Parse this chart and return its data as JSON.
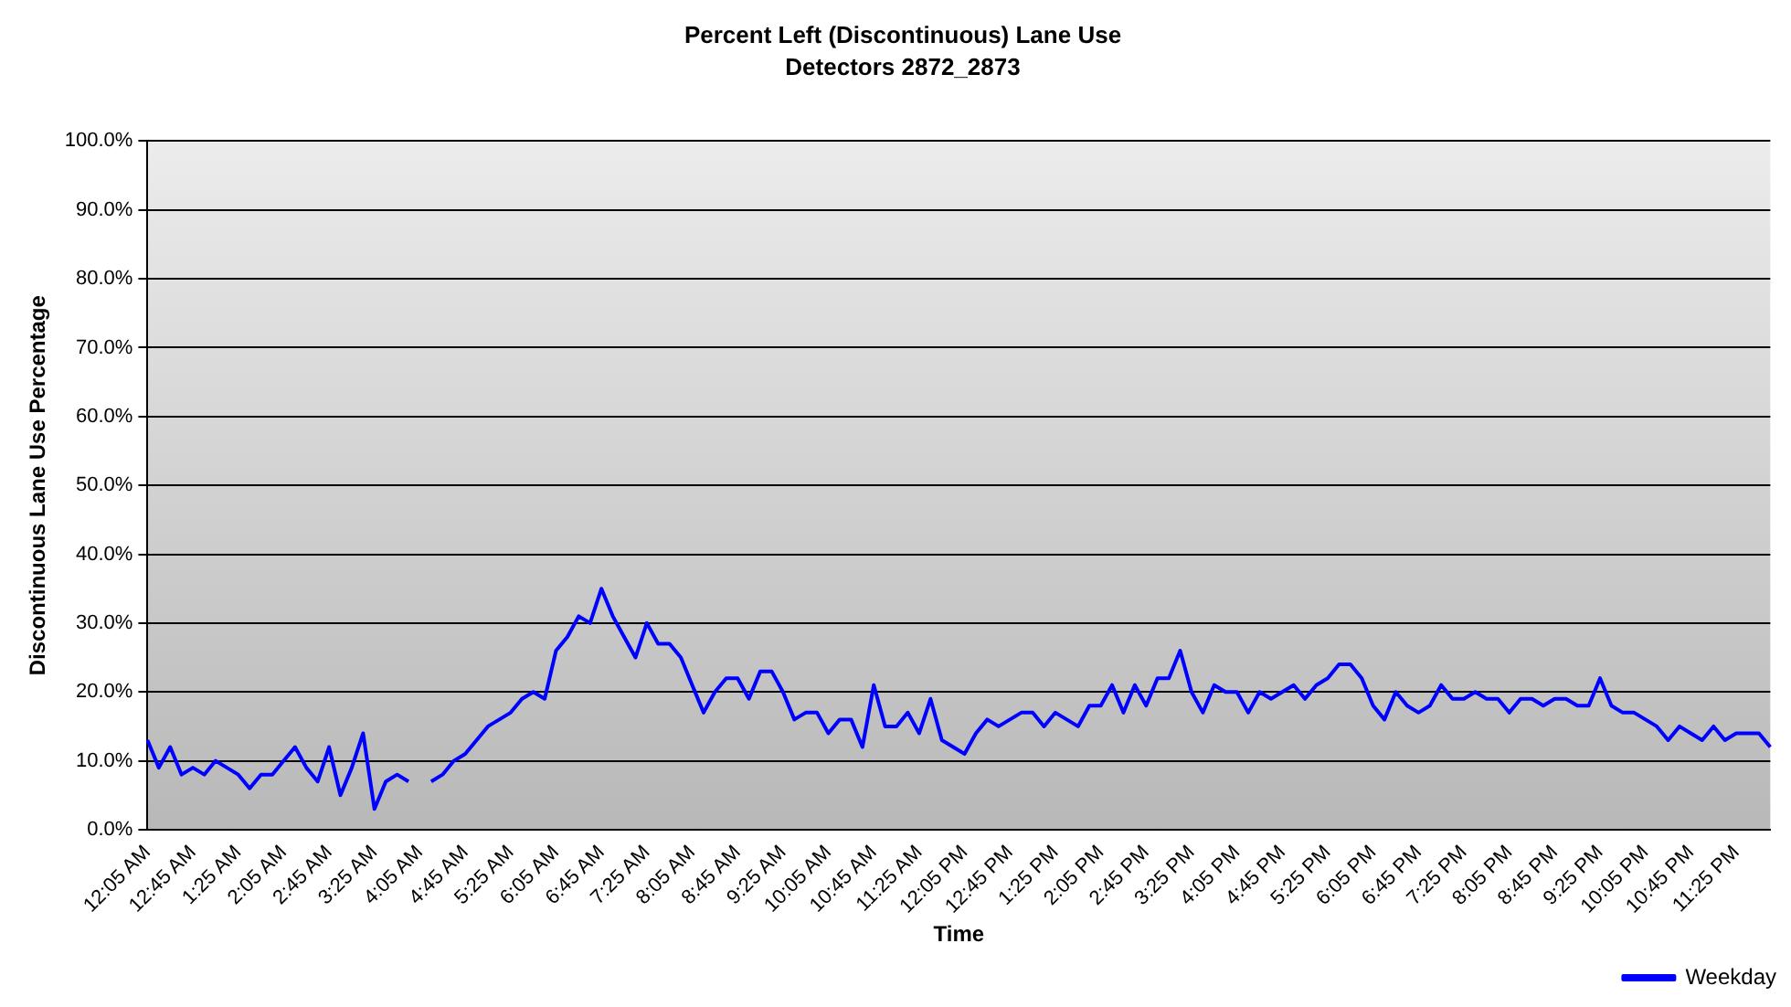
{
  "chart_data": {
    "type": "line",
    "title": "Percent Left (Discontinuous) Lane Use",
    "subtitle": "Detectors 2872_2873",
    "xlabel": "Time",
    "ylabel": "Discontinuous Lane Use Percentage",
    "categories": [
      "12:05 AM",
      null,
      null,
      null,
      "12:45 AM",
      null,
      null,
      null,
      "1:25 AM",
      null,
      null,
      null,
      "2:05 AM",
      null,
      null,
      null,
      "2:45 AM",
      null,
      null,
      null,
      "3:25 AM",
      null,
      null,
      null,
      "4:05 AM",
      null,
      null,
      null,
      "4:45 AM",
      null,
      null,
      null,
      "5:25 AM",
      null,
      null,
      null,
      "6:05 AM",
      null,
      null,
      null,
      "6:45 AM",
      null,
      null,
      null,
      "7:25 AM",
      null,
      null,
      null,
      "8:05 AM",
      null,
      null,
      null,
      "8:45 AM",
      null,
      null,
      null,
      "9:25 AM",
      null,
      null,
      null,
      "10:05 AM",
      null,
      null,
      null,
      "10:45 AM",
      null,
      null,
      null,
      "11:25 AM",
      null,
      null,
      null,
      "12:05 PM",
      null,
      null,
      null,
      "12:45 PM",
      null,
      null,
      null,
      "1:25 PM",
      null,
      null,
      null,
      "2:05 PM",
      null,
      null,
      null,
      "2:45 PM",
      null,
      null,
      null,
      "3:25 PM",
      null,
      null,
      null,
      "4:05 PM",
      null,
      null,
      null,
      "4:45 PM",
      null,
      null,
      null,
      "5:25 PM",
      null,
      null,
      null,
      "6:05 PM",
      null,
      null,
      null,
      "6:45 PM",
      null,
      null,
      null,
      "7:25 PM",
      null,
      null,
      null,
      "8:05 PM",
      null,
      null,
      null,
      "8:45 PM",
      null,
      null,
      null,
      "9:25 PM",
      null,
      null,
      null,
      "10:05 PM",
      null,
      null,
      null,
      "10:45 PM",
      null,
      null,
      null,
      "11:25 PM",
      null,
      null,
      null
    ],
    "series": [
      {
        "name": "Weekday",
        "color": "#0000ff",
        "values": [
          13,
          9,
          12,
          8,
          9,
          8,
          10,
          9,
          8,
          6,
          8,
          8,
          10,
          12,
          9,
          7,
          12,
          5,
          9,
          14,
          3,
          7,
          8,
          7,
          null,
          7,
          8,
          10,
          11,
          13,
          15,
          16,
          17,
          19,
          20,
          19,
          26,
          28,
          31,
          30,
          35,
          31,
          28,
          25,
          30,
          27,
          27,
          25,
          21,
          17,
          20,
          22,
          22,
          19,
          23,
          23,
          20,
          16,
          17,
          17,
          14,
          16,
          16,
          12,
          21,
          15,
          15,
          17,
          14,
          19,
          13,
          12,
          11,
          14,
          16,
          15,
          16,
          17,
          17,
          15,
          17,
          16,
          15,
          18,
          18,
          21,
          17,
          21,
          18,
          22,
          22,
          26,
          20,
          17,
          21,
          20,
          20,
          17,
          20,
          19,
          20,
          21,
          19,
          21,
          22,
          24,
          24,
          22,
          18,
          16,
          20,
          18,
          17,
          18,
          21,
          19,
          19,
          20,
          19,
          19,
          17,
          19,
          19,
          18,
          19,
          19,
          18,
          18,
          22,
          18,
          17,
          17,
          16,
          15,
          13,
          15,
          14,
          13,
          15,
          13,
          14,
          14,
          14,
          12
        ]
      }
    ],
    "ylim": [
      0,
      100
    ],
    "yticks": [
      {
        "value": 0,
        "label": "0.0%"
      },
      {
        "value": 10,
        "label": "10.0%"
      },
      {
        "value": 20,
        "label": "20.0%"
      },
      {
        "value": 30,
        "label": "30.0%"
      },
      {
        "value": 40,
        "label": "40.0%"
      },
      {
        "value": 50,
        "label": "50.0%"
      },
      {
        "value": 60,
        "label": "60.0%"
      },
      {
        "value": 70,
        "label": "70.0%"
      },
      {
        "value": 80,
        "label": "80.0%"
      },
      {
        "value": 90,
        "label": "90.0%"
      },
      {
        "value": 100,
        "label": "100.0%"
      }
    ],
    "grid": "y",
    "legend": "bottom right",
    "marker": "none",
    "line_style": "solid"
  }
}
